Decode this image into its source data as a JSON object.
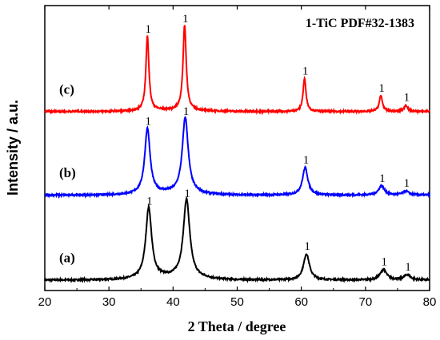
{
  "chart_data": {
    "type": "line",
    "xlabel": "2 Theta / degree",
    "ylabel": "Intensity / a.u.",
    "xlim": [
      20,
      80
    ],
    "xticks": [
      "20",
      "30",
      "40",
      "50",
      "60",
      "70",
      "80"
    ],
    "yticks_shown": false,
    "annotation": "1-TiC PDF#32-1383",
    "peak_marker": "1",
    "peak_positions": [
      36.0,
      41.9,
      60.6,
      72.5,
      76.3
    ],
    "series": [
      {
        "name": "(a)",
        "color": "#000000",
        "baseline": 0.0,
        "peaks": [
          {
            "x": 36.2,
            "height": 0.54,
            "width": 0.55
          },
          {
            "x": 42.1,
            "height": 0.6,
            "width": 0.6
          },
          {
            "x": 60.8,
            "height": 0.2,
            "width": 0.55
          },
          {
            "x": 72.8,
            "height": 0.08,
            "width": 0.6
          },
          {
            "x": 76.5,
            "height": 0.04,
            "width": 0.6
          }
        ],
        "hump_height": 0.02
      },
      {
        "name": "(b)",
        "color": "#0000ff",
        "baseline": 0.65,
        "peaks": [
          {
            "x": 36.0,
            "height": 0.5,
            "width": 0.5
          },
          {
            "x": 41.9,
            "height": 0.58,
            "width": 0.55
          },
          {
            "x": 60.6,
            "height": 0.21,
            "width": 0.5
          },
          {
            "x": 72.5,
            "height": 0.07,
            "width": 0.55
          },
          {
            "x": 76.3,
            "height": 0.03,
            "width": 0.55
          }
        ],
        "hump_height": 0.015
      },
      {
        "name": "(c)",
        "color": "#ff0000",
        "baseline": 1.29,
        "peaks": [
          {
            "x": 36.0,
            "height": 0.57,
            "width": 0.28
          },
          {
            "x": 41.8,
            "height": 0.65,
            "width": 0.3
          },
          {
            "x": 60.5,
            "height": 0.25,
            "width": 0.28
          },
          {
            "x": 72.4,
            "height": 0.12,
            "width": 0.3
          },
          {
            "x": 76.3,
            "height": 0.05,
            "width": 0.3
          }
        ],
        "hump_height": 0.01
      }
    ]
  }
}
